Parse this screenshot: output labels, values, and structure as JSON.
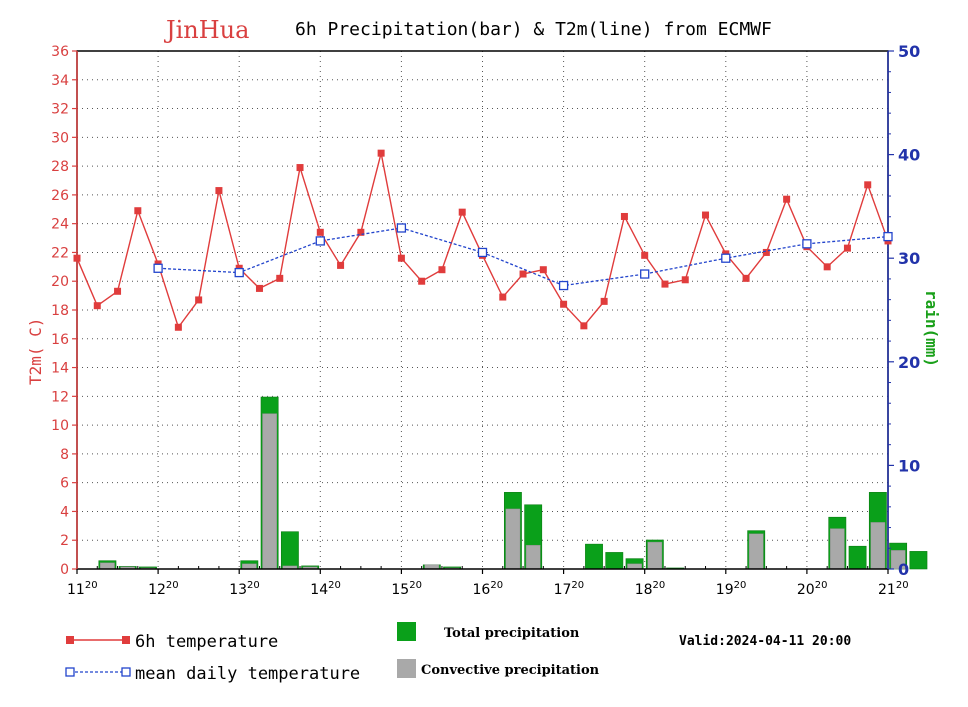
{
  "header": {
    "city": "JinHua",
    "title": "6h Precipitation(bar) & T2m(line) from ECMWF",
    "city_color": "#d94040"
  },
  "chart_data": {
    "type": "bar+line",
    "left_axis": {
      "label": "T2m(  C)",
      "ylim": [
        0,
        36
      ],
      "ticks": [
        0,
        2,
        4,
        6,
        8,
        10,
        12,
        14,
        16,
        18,
        20,
        22,
        24,
        26,
        28,
        30,
        32,
        34,
        36
      ],
      "color": "#d94040"
    },
    "right_axis": {
      "label": "rain(mm)",
      "ylim": [
        0,
        50
      ],
      "ticks": [
        0,
        10,
        20,
        30,
        40,
        50
      ],
      "color": "#2233aa",
      "label_color": "#1aa01a"
    },
    "x_ticks": [
      {
        "day": "11",
        "hour": "20"
      },
      {
        "day": "12",
        "hour": "20"
      },
      {
        "day": "13",
        "hour": "20"
      },
      {
        "day": "14",
        "hour": "20"
      },
      {
        "day": "15",
        "hour": "20"
      },
      {
        "day": "16",
        "hour": "20"
      },
      {
        "day": "17",
        "hour": "20"
      },
      {
        "day": "18",
        "hour": "20"
      },
      {
        "day": "19",
        "hour": "20"
      },
      {
        "day": "20",
        "hour": "20"
      },
      {
        "day": "21",
        "hour": "20"
      }
    ],
    "x_unit": "6h steps from 11th 20:00",
    "grid": true,
    "series": [
      {
        "name": "6h temperature",
        "color": "#e03c3c",
        "axis": "left",
        "x": [
          0,
          1,
          2,
          3,
          4,
          5,
          6,
          7,
          8,
          9,
          10,
          11,
          12,
          13,
          14,
          15,
          16,
          17,
          18,
          19,
          20,
          21,
          22,
          23,
          24,
          25,
          26,
          27,
          28,
          29,
          30,
          31,
          32,
          33,
          34,
          35,
          36,
          37,
          38,
          39,
          40
        ],
        "values": [
          21.6,
          18.3,
          19.3,
          24.9,
          21.2,
          16.8,
          18.7,
          26.3,
          20.9,
          19.5,
          20.2,
          27.9,
          23.4,
          21.1,
          23.4,
          28.9,
          21.6,
          20.0,
          20.8,
          24.8,
          21.8,
          18.9,
          20.5,
          20.8,
          18.4,
          16.9,
          18.6,
          24.5,
          21.8,
          19.8,
          20.1,
          24.6,
          21.9,
          20.2,
          22.0,
          25.7,
          22.4,
          21.0,
          22.3,
          26.7,
          22.8
        ]
      },
      {
        "name": "mean daily temperature",
        "color": "#2244cc",
        "axis": "left",
        "x": [
          4,
          8,
          12,
          16,
          20,
          24,
          28,
          32,
          36,
          40
        ],
        "values": [
          20.9,
          20.6,
          22.8,
          23.7,
          22.0,
          19.7,
          20.5,
          21.6,
          22.6,
          23.1
        ]
      },
      {
        "name": "Total precipitation",
        "color": "#0aa01a",
        "axis": "right",
        "type": "bar",
        "x": [
          2,
          3,
          4,
          9,
          10,
          11,
          12,
          18,
          19,
          22,
          23,
          26,
          27,
          28,
          29,
          30,
          31,
          34,
          38,
          39,
          40,
          41,
          42,
          43,
          44
        ],
        "values": [
          0.8,
          0.25,
          0.2,
          0.8,
          16.6,
          3.6,
          0.3,
          0.4,
          0.2,
          7.4,
          6.2,
          2.4,
          1.6,
          1.0,
          2.8,
          0.1,
          0.0,
          3.7,
          5.0,
          2.2,
          7.4,
          2.5,
          1.7,
          0.0,
          0.0
        ]
      },
      {
        "name": "Convective precipitation",
        "color": "#a9a9a9",
        "axis": "right",
        "type": "bar",
        "x": [
          2,
          3,
          4,
          9,
          10,
          11,
          12,
          18,
          19,
          22,
          23,
          26,
          27,
          28,
          29,
          30,
          31,
          34,
          38,
          39,
          40,
          41,
          42,
          43,
          44
        ],
        "values": [
          0.6,
          0.2,
          0.1,
          0.5,
          15.0,
          0.3,
          0.2,
          0.4,
          0.1,
          5.8,
          2.3,
          0.0,
          0.0,
          0.5,
          2.6,
          0.0,
          0.0,
          3.4,
          3.9,
          0.0,
          4.5,
          1.8,
          0.0,
          0.0,
          0.0
        ]
      }
    ]
  },
  "legend": {
    "temp6h": "6h temperature",
    "meanTemp": "mean daily temperature",
    "totalPrecip": "Total precipitation",
    "convPrecip": "Convective precipitation"
  },
  "footer": {
    "valid": "Valid:2024-04-11 20:00"
  }
}
